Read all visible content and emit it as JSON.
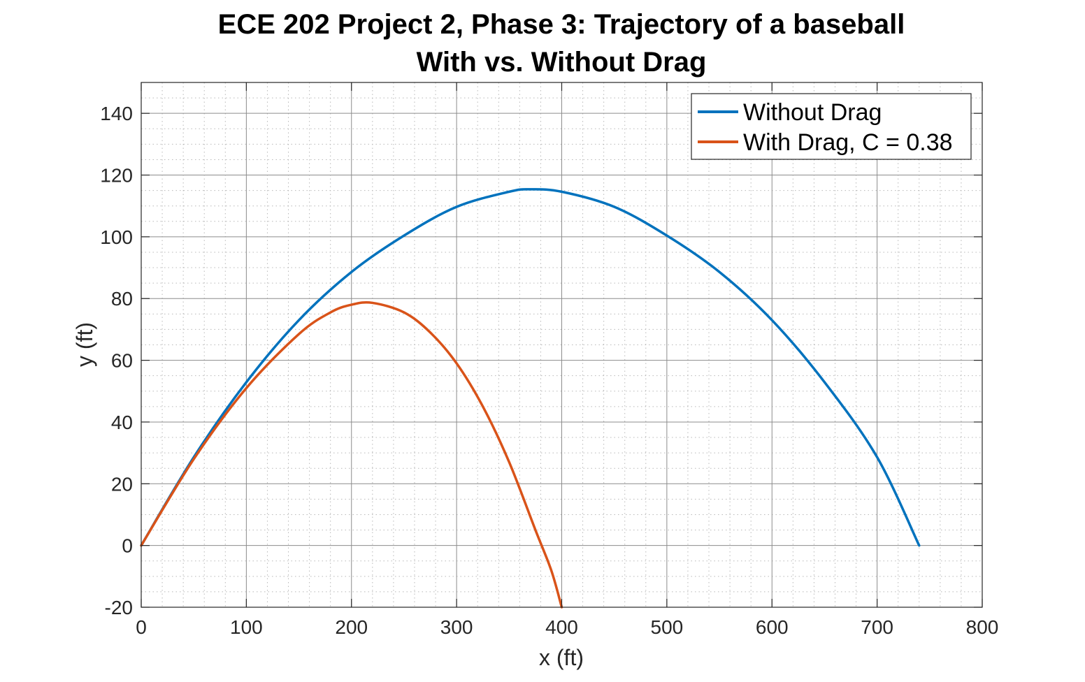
{
  "chart_data": {
    "type": "line",
    "title": "ECE 202 Project 2, Phase 3: Trajectory of a baseball",
    "subtitle": "With vs. Without Drag",
    "xlabel": "x (ft)",
    "ylabel": "y (ft)",
    "xlim": [
      0,
      800
    ],
    "ylim": [
      -20,
      150
    ],
    "xticks": [
      0,
      100,
      200,
      300,
      400,
      500,
      600,
      700,
      800
    ],
    "yticks": [
      -20,
      0,
      20,
      40,
      60,
      80,
      100,
      120,
      140
    ],
    "grid": true,
    "minor_grid": true,
    "legend_position": "top-right",
    "series": [
      {
        "name": "Without Drag",
        "color": "#0072BD",
        "x": [
          0,
          50,
          100,
          150,
          200,
          250,
          300,
          350,
          370,
          400,
          450,
          500,
          550,
          600,
          650,
          700,
          740
        ],
        "y": [
          0,
          28.6,
          52.9,
          73.0,
          88.6,
          100.4,
          109.7,
          114.6,
          115.4,
          114.6,
          109.7,
          100.4,
          88.6,
          73.0,
          52.9,
          28.6,
          0
        ]
      },
      {
        "name": "With Drag, C = 0.38",
        "color": "#D95319",
        "x": [
          0,
          50,
          100,
          150,
          180,
          200,
          220,
          250,
          275,
          300,
          325,
          350,
          375,
          390,
          400
        ],
        "y": [
          0,
          28.0,
          51.0,
          68.5,
          75.5,
          78.0,
          78.6,
          75.5,
          69.0,
          59.0,
          45.0,
          27.0,
          5.0,
          -8.0,
          -20.0
        ]
      }
    ]
  }
}
